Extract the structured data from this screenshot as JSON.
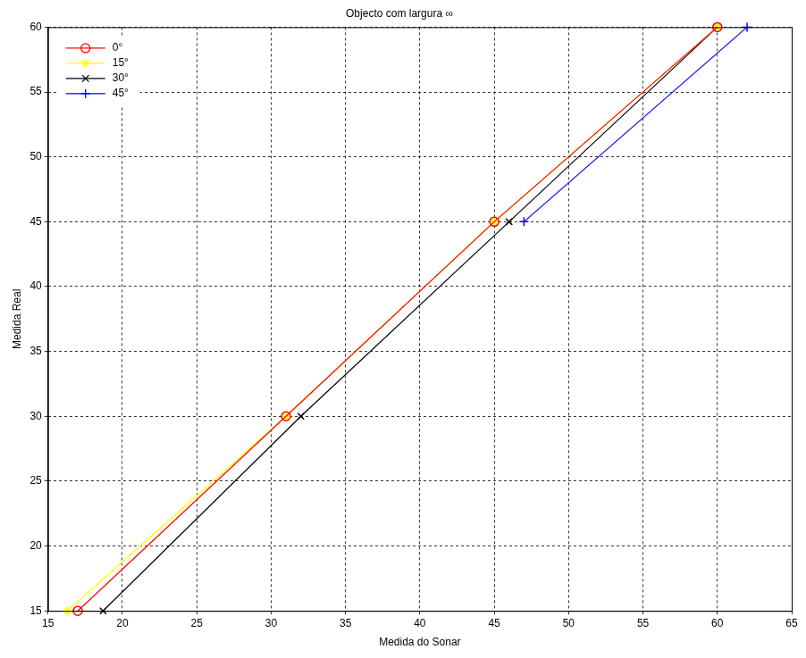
{
  "chart_data": {
    "type": "line",
    "title": "Objecto com largura ∞",
    "x_label": "Medida do Sonar",
    "y_label": "Medida Real",
    "xlim": [
      15,
      65
    ],
    "xticks": [
      15,
      20,
      25,
      30,
      35,
      40,
      45,
      50,
      55,
      60,
      65
    ],
    "ylim": [
      15,
      60
    ],
    "yticks": [
      15,
      20,
      25,
      30,
      35,
      40,
      45,
      50,
      55,
      60
    ],
    "grid": true,
    "legend": "upper left",
    "series": [
      {
        "name": "0°",
        "color": "#ff0000",
        "marker": "circle",
        "x": [
          17,
          31,
          45,
          60
        ],
        "values": [
          15,
          30,
          45,
          60
        ]
      },
      {
        "name": "15°",
        "color": "#ffff00",
        "marker": "star",
        "x": [
          16.3,
          31,
          45,
          60
        ],
        "values": [
          15,
          30,
          45,
          60
        ]
      },
      {
        "name": "30°",
        "color": "#000000",
        "marker": "x",
        "x": [
          18.7,
          32,
          46,
          60
        ],
        "values": [
          15,
          30,
          45,
          60
        ]
      },
      {
        "name": "45°",
        "color": "#0000ff",
        "marker": "plus",
        "x": [
          47,
          62
        ],
        "values": [
          45,
          60
        ]
      }
    ]
  }
}
